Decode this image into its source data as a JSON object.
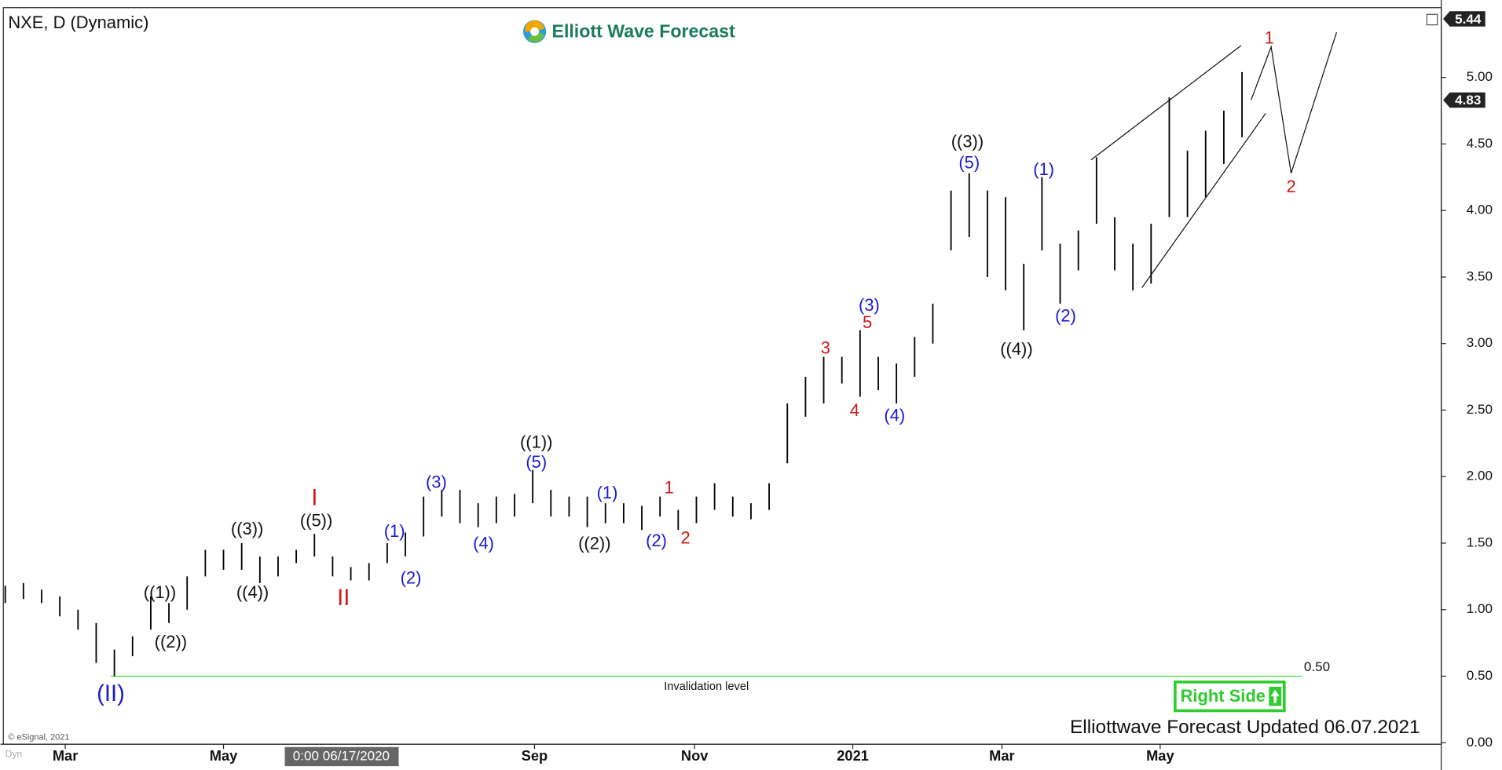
{
  "chart_data": {
    "type": "ohlc",
    "title": "NXE, D (Dynamic)",
    "brand": "Elliott Wave Forecast",
    "footer": "Elliottwave Forecast Updated 06.07.2021",
    "badge": "Right Side",
    "copyright": "© eSignal, 2021",
    "corner_label": "Dyn",
    "crosshair_label": "0:00 06/17/2020",
    "color": "#000000",
    "xlim": [
      0,
      78.9
    ],
    "ylim": [
      0,
      5.51
    ],
    "xticks": [
      {
        "value": 3.3,
        "label": "Mar"
      },
      {
        "value": 12,
        "label": "May"
      },
      {
        "value": 29.1,
        "label": "Sep"
      },
      {
        "value": 37.9,
        "label": "Nov"
      },
      {
        "value": 46.6,
        "label": "2021"
      },
      {
        "value": 54.8,
        "label": "Mar"
      },
      {
        "value": 63.5,
        "label": "May"
      }
    ],
    "yticks": [
      {
        "value": 0,
        "label": "0.00"
      },
      {
        "value": 0.5,
        "label": "0.50"
      },
      {
        "value": 1,
        "label": "1.00"
      },
      {
        "value": 1.5,
        "label": "1.50"
      },
      {
        "value": 2,
        "label": "2.00"
      },
      {
        "value": 2.5,
        "label": "2.50"
      },
      {
        "value": 3,
        "label": "3.00"
      },
      {
        "value": 3.5,
        "label": "3.50"
      },
      {
        "value": 4,
        "label": "4.00"
      },
      {
        "value": 4.5,
        "label": "4.50"
      },
      {
        "value": 5,
        "label": "5.00"
      }
    ],
    "price_marks": [
      5.44,
      4.83
    ],
    "bars": {
      "x": [
        0,
        1,
        2,
        3,
        4,
        5,
        6,
        7,
        8,
        9,
        10,
        11,
        12,
        13,
        14,
        15,
        16,
        17,
        18,
        19,
        20,
        21,
        22,
        23,
        24,
        25,
        26,
        27,
        28,
        29,
        30,
        31,
        32,
        33,
        34,
        35,
        36,
        37,
        38,
        39,
        40,
        41,
        42,
        43,
        44,
        45,
        46,
        47,
        48,
        49,
        50,
        51,
        52,
        53,
        54,
        55,
        56,
        57,
        58,
        59,
        60,
        61,
        62,
        63,
        64,
        65,
        66,
        67,
        68
      ],
      "high": [
        1.18,
        1.2,
        1.15,
        1.1,
        1.0,
        0.9,
        0.7,
        0.8,
        1.1,
        1.05,
        1.25,
        1.45,
        1.45,
        1.5,
        1.4,
        1.4,
        1.45,
        1.57,
        1.4,
        1.32,
        1.35,
        1.5,
        1.58,
        1.85,
        1.9,
        1.9,
        1.8,
        1.85,
        1.87,
        2.05,
        1.9,
        1.85,
        1.85,
        1.8,
        1.8,
        1.78,
        1.85,
        1.75,
        1.85,
        1.95,
        1.85,
        1.8,
        1.95,
        2.55,
        2.75,
        2.9,
        2.9,
        3.1,
        2.9,
        2.85,
        3.05,
        3.3,
        4.15,
        4.28,
        4.15,
        4.1,
        3.6,
        4.25,
        3.75,
        3.85,
        4.4,
        3.95,
        3.75,
        3.9,
        4.85,
        4.45,
        4.6,
        4.75,
        5.04
      ],
      "low": [
        1.05,
        1.08,
        1.05,
        0.95,
        0.85,
        0.6,
        0.5,
        0.65,
        0.85,
        0.9,
        1.0,
        1.25,
        1.3,
        1.3,
        1.2,
        1.25,
        1.35,
        1.4,
        1.25,
        1.22,
        1.22,
        1.35,
        1.4,
        1.55,
        1.7,
        1.65,
        1.62,
        1.65,
        1.7,
        1.8,
        1.7,
        1.7,
        1.62,
        1.65,
        1.65,
        1.6,
        1.7,
        1.6,
        1.65,
        1.75,
        1.7,
        1.68,
        1.75,
        2.1,
        2.45,
        2.55,
        2.7,
        2.6,
        2.65,
        2.55,
        2.75,
        3.0,
        3.7,
        3.8,
        3.5,
        3.4,
        3.1,
        3.7,
        3.3,
        3.55,
        3.9,
        3.55,
        3.4,
        3.45,
        3.95,
        3.95,
        4.1,
        4.35,
        4.55
      ]
    },
    "invalidation": {
      "value": 0.5,
      "value_label": "0.50",
      "label": "Invalidation level",
      "x": [
        5.8,
        71.3
      ],
      "color": "#44dd44"
    },
    "channel": [
      [
        [
          59.7,
          4.38
        ],
        [
          67.95,
          5.24
        ]
      ],
      [
        [
          62.5,
          3.42
        ],
        [
          69.3,
          4.73
        ]
      ]
    ],
    "projection": {
      "x": [
        68.5,
        69.6,
        70.7,
        73.2
      ],
      "y": [
        4.83,
        5.23,
        4.28,
        5.34
      ]
    },
    "wave_labels": [
      {
        "text": "(II)",
        "x": 5.8,
        "y": 0.36,
        "color": "#1a1ad0"
      },
      {
        "text": "((1))",
        "x": 8.5,
        "y": 1.12,
        "color": "#111111"
      },
      {
        "text": "((2))",
        "x": 9.1,
        "y": 0.75,
        "color": "#111111"
      },
      {
        "text": "((3))",
        "x": 13.3,
        "y": 1.6,
        "color": "#111111"
      },
      {
        "text": "((4))",
        "x": 13.6,
        "y": 1.12,
        "color": "#111111"
      },
      {
        "text": "((5))",
        "x": 17.1,
        "y": 1.66,
        "color": "#111111"
      },
      {
        "text": "I",
        "x": 17.0,
        "y": 1.83,
        "color": "#d01818"
      },
      {
        "text": "II",
        "x": 18.6,
        "y": 1.08,
        "color": "#d01818"
      },
      {
        "text": "(1)",
        "x": 21.4,
        "y": 1.58,
        "color": "#1a1ad0"
      },
      {
        "text": "(2)",
        "x": 22.3,
        "y": 1.23,
        "color": "#1a1ad0"
      },
      {
        "text": "(3)",
        "x": 23.7,
        "y": 1.95,
        "color": "#1a1ad0"
      },
      {
        "text": "(4)",
        "x": 26.3,
        "y": 1.49,
        "color": "#1a1ad0"
      },
      {
        "text": "((1))",
        "x": 29.2,
        "y": 2.25,
        "color": "#111111"
      },
      {
        "text": "(5)",
        "x": 29.2,
        "y": 2.1,
        "color": "#1a1ad0"
      },
      {
        "text": "(1)",
        "x": 33.1,
        "y": 1.87,
        "color": "#1a1ad0"
      },
      {
        "text": "((2))",
        "x": 32.4,
        "y": 1.49,
        "color": "#111111"
      },
      {
        "text": "(2)",
        "x": 35.8,
        "y": 1.51,
        "color": "#1a1ad0"
      },
      {
        "text": "1",
        "x": 36.5,
        "y": 1.91,
        "color": "#d01818"
      },
      {
        "text": "2",
        "x": 37.4,
        "y": 1.53,
        "color": "#d01818"
      },
      {
        "text": "3",
        "x": 45.1,
        "y": 2.96,
        "color": "#d01818"
      },
      {
        "text": "4",
        "x": 46.7,
        "y": 2.49,
        "color": "#d01818"
      },
      {
        "text": "5",
        "x": 47.4,
        "y": 3.15,
        "color": "#d01818"
      },
      {
        "text": "(3)",
        "x": 47.5,
        "y": 3.28,
        "color": "#1a1ad0"
      },
      {
        "text": "(4)",
        "x": 48.9,
        "y": 2.45,
        "color": "#1a1ad0"
      },
      {
        "text": "((3))",
        "x": 52.9,
        "y": 4.51,
        "color": "#111111"
      },
      {
        "text": "(5)",
        "x": 53.0,
        "y": 4.35,
        "color": "#1a1ad0"
      },
      {
        "text": "(1)",
        "x": 57.1,
        "y": 4.3,
        "color": "#1a1ad0"
      },
      {
        "text": "((4))",
        "x": 55.6,
        "y": 2.95,
        "color": "#111111"
      },
      {
        "text": "(2)",
        "x": 58.3,
        "y": 3.2,
        "color": "#1a1ad0"
      },
      {
        "text": "1",
        "x": 69.5,
        "y": 5.29,
        "color": "#d01818"
      },
      {
        "text": "2",
        "x": 70.7,
        "y": 4.17,
        "color": "#d01818"
      }
    ]
  }
}
